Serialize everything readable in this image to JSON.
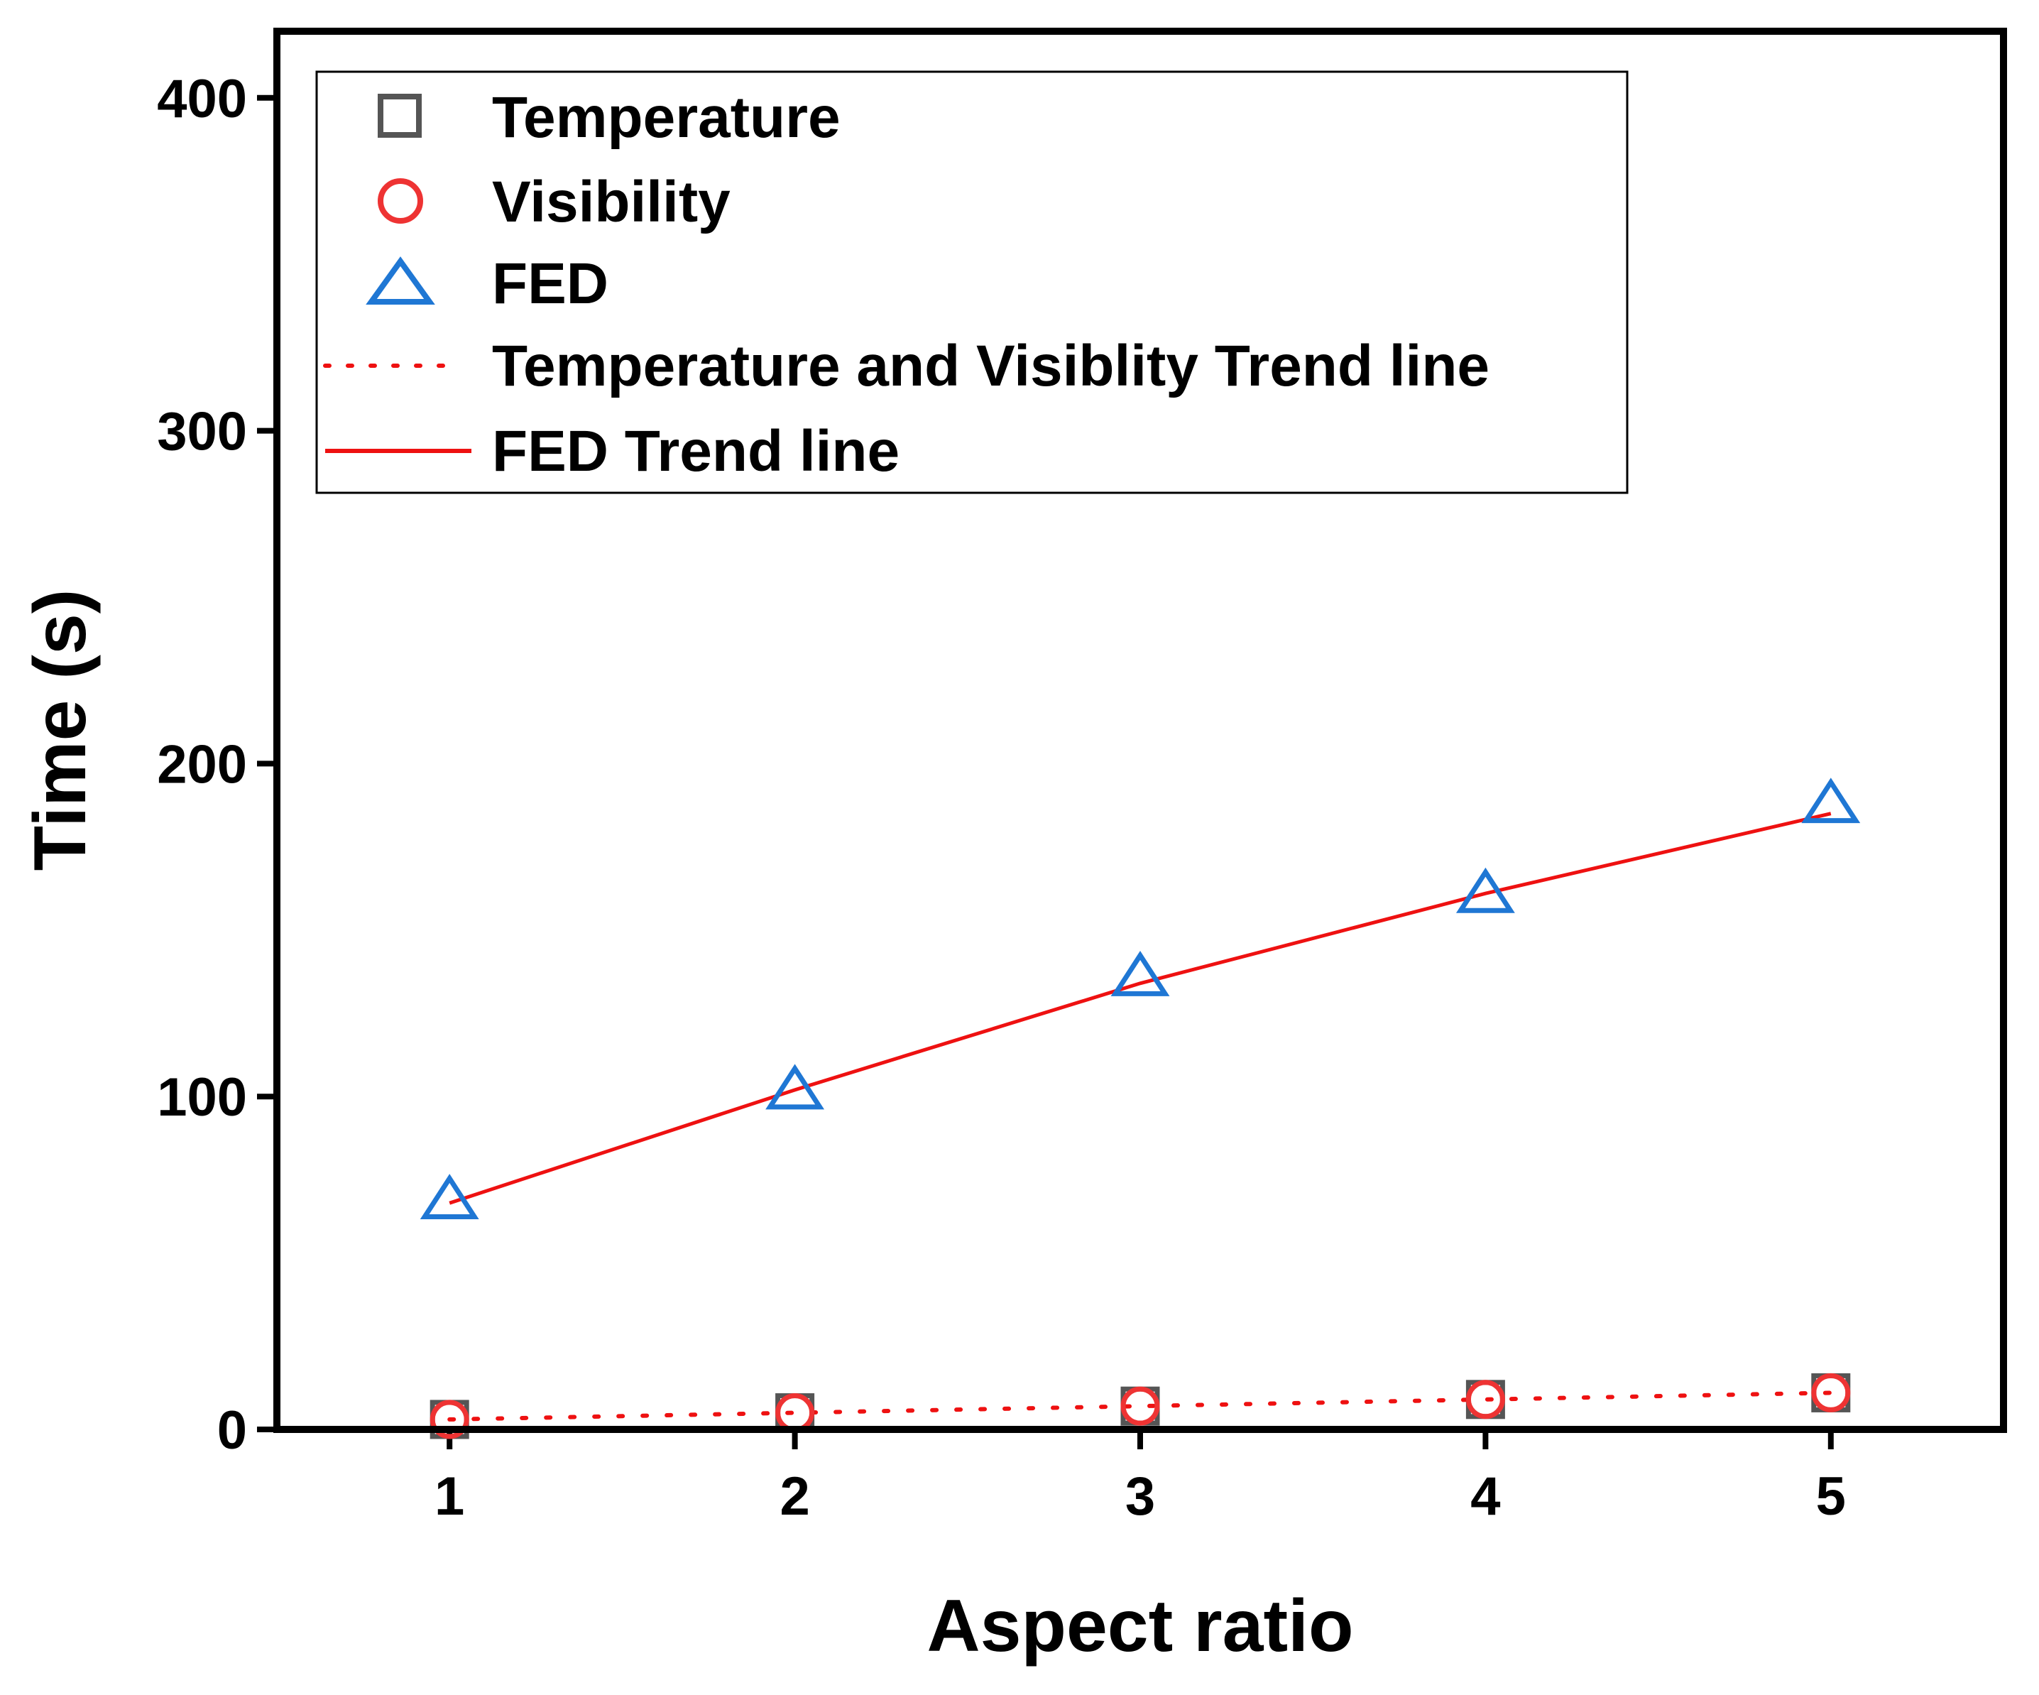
{
  "chart_data": {
    "type": "scatter",
    "title": "",
    "xlabel": "Aspect ratio",
    "ylabel": "Time (s)",
    "xlim": [
      0.5,
      5.5
    ],
    "ylim": [
      0,
      420
    ],
    "x_ticks": [
      1,
      2,
      3,
      4,
      5
    ],
    "y_ticks": [
      0,
      100,
      200,
      300,
      400
    ],
    "grid": false,
    "legend_position": "top-left",
    "x": [
      1,
      2,
      3,
      4,
      5
    ],
    "series": [
      {
        "name": "Temperature",
        "marker": "square",
        "color": "#555555",
        "values": [
          3,
          5,
          7,
          9,
          11
        ]
      },
      {
        "name": "Visibility",
        "marker": "circle",
        "color": "#ee3333",
        "values": [
          3,
          5,
          7,
          9,
          11
        ]
      },
      {
        "name": "FED",
        "marker": "triangle",
        "color": "#1f77d4",
        "values": [
          69,
          102,
          136,
          161,
          188
        ]
      }
    ],
    "trend_lines": [
      {
        "name": "Temperature and Visiblity Trend line",
        "style": "dotted",
        "color": "#ee1111",
        "values": [
          3,
          5,
          7,
          9,
          11
        ]
      },
      {
        "name": "FED Trend line",
        "style": "solid",
        "color": "#ee1111",
        "values": [
          68,
          102,
          134,
          161,
          185
        ]
      }
    ]
  }
}
